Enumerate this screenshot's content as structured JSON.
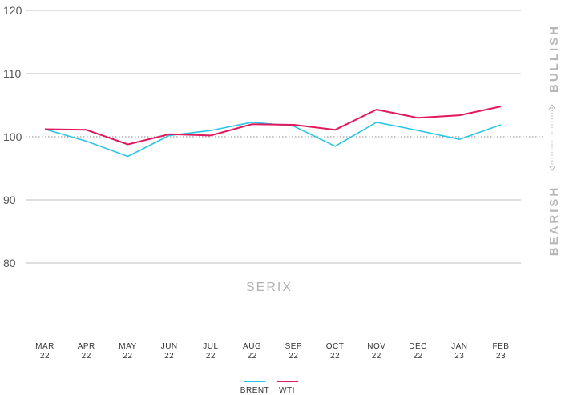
{
  "chart_data": {
    "type": "line",
    "title": "",
    "xlabel": "",
    "ylabel": "",
    "ylim": [
      80,
      120
    ],
    "yticks": [
      80,
      90,
      100,
      110,
      120
    ],
    "categories": [
      [
        "MAR",
        "22"
      ],
      [
        "APR",
        "22"
      ],
      [
        "MAY",
        "22"
      ],
      [
        "JUN",
        "22"
      ],
      [
        "JUL",
        "22"
      ],
      [
        "AUG",
        "22"
      ],
      [
        "SEP",
        "22"
      ],
      [
        "OCT",
        "22"
      ],
      [
        "NOV",
        "22"
      ],
      [
        "DEC",
        "22"
      ],
      [
        "JAN",
        "23"
      ],
      [
        "FEB",
        "23"
      ]
    ],
    "series": [
      {
        "name": "BRENT",
        "color": "#29c5e6",
        "values": [
          101.2,
          99.3,
          96.9,
          100.2,
          101.0,
          102.3,
          101.7,
          98.5,
          102.3,
          101.0,
          99.6,
          101.9
        ]
      },
      {
        "name": "WTI",
        "color": "#e2185c",
        "values": [
          101.2,
          101.1,
          98.8,
          100.4,
          100.2,
          102.0,
          101.9,
          101.1,
          104.3,
          103.0,
          103.4,
          104.8
        ]
      }
    ],
    "reference_line": {
      "value": 100,
      "style": "dotted"
    },
    "grid": true,
    "legend_position": "bottom-center",
    "annotations": {
      "upper": "BULLISH",
      "lower": "BEARISH",
      "center_label": "SERIX"
    }
  }
}
